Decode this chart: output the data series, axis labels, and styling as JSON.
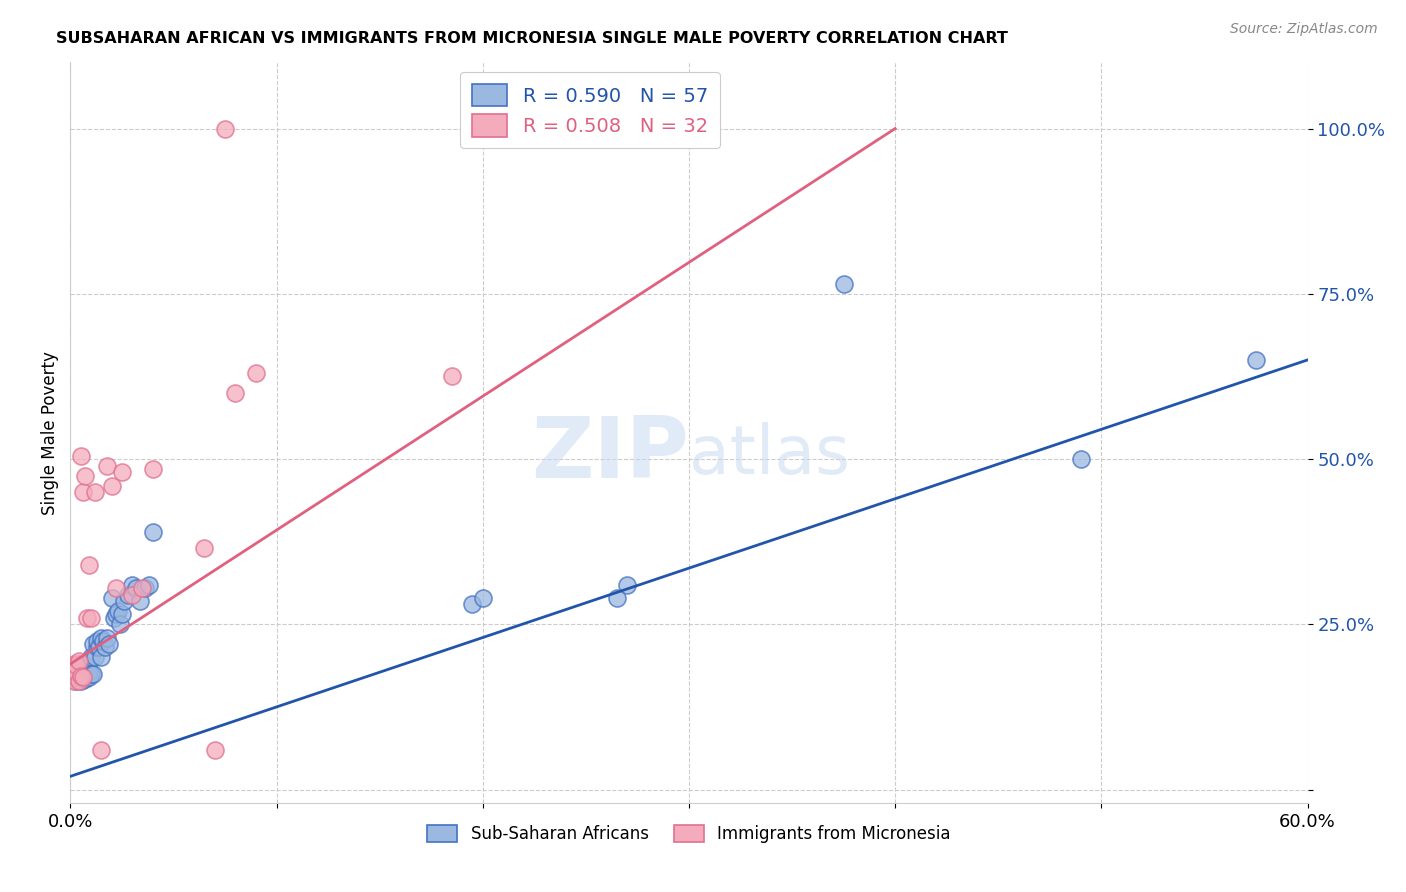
{
  "title": "SUBSAHARAN AFRICAN VS IMMIGRANTS FROM MICRONESIA SINGLE MALE POVERTY CORRELATION CHART",
  "source": "Source: ZipAtlas.com",
  "ylabel": "Single Male Poverty",
  "legend_sub1": "Sub-Saharan Africans",
  "legend_sub2": "Immigrants from Micronesia",
  "blue_fill": "#9AB8E0",
  "blue_edge": "#4472C4",
  "pink_fill": "#F4ACBC",
  "pink_edge": "#E07090",
  "blue_line_color": "#2255AA",
  "pink_line_color": "#E06080",
  "watermark_color": "#C5D8F0",
  "blue_line_x0": 0.0,
  "blue_line_y0": 0.02,
  "blue_line_x1": 0.6,
  "blue_line_y1": 0.65,
  "pink_line_x0": 0.0,
  "pink_line_y0": 0.19,
  "pink_line_x1": 0.4,
  "pink_line_y1": 1.0,
  "blue_scatter_x": [
    0.001,
    0.002,
    0.002,
    0.003,
    0.003,
    0.003,
    0.004,
    0.004,
    0.004,
    0.005,
    0.005,
    0.005,
    0.006,
    0.006,
    0.006,
    0.007,
    0.007,
    0.007,
    0.008,
    0.008,
    0.009,
    0.009,
    0.01,
    0.01,
    0.011,
    0.011,
    0.012,
    0.013,
    0.013,
    0.014,
    0.015,
    0.015,
    0.016,
    0.017,
    0.018,
    0.019,
    0.02,
    0.021,
    0.022,
    0.023,
    0.024,
    0.025,
    0.026,
    0.028,
    0.03,
    0.032,
    0.034,
    0.036,
    0.038,
    0.04,
    0.195,
    0.2,
    0.265,
    0.27,
    0.375,
    0.49,
    0.575
  ],
  "blue_scatter_y": [
    0.175,
    0.18,
    0.185,
    0.165,
    0.175,
    0.185,
    0.17,
    0.18,
    0.19,
    0.165,
    0.175,
    0.185,
    0.17,
    0.175,
    0.185,
    0.168,
    0.178,
    0.188,
    0.172,
    0.182,
    0.17,
    0.18,
    0.175,
    0.2,
    0.175,
    0.22,
    0.2,
    0.215,
    0.225,
    0.215,
    0.2,
    0.23,
    0.225,
    0.215,
    0.23,
    0.22,
    0.29,
    0.26,
    0.265,
    0.27,
    0.25,
    0.265,
    0.285,
    0.295,
    0.31,
    0.305,
    0.285,
    0.305,
    0.31,
    0.39,
    0.28,
    0.29,
    0.29,
    0.31,
    0.765,
    0.5,
    0.65
  ],
  "pink_scatter_x": [
    0.001,
    0.001,
    0.002,
    0.002,
    0.003,
    0.003,
    0.003,
    0.004,
    0.004,
    0.005,
    0.005,
    0.006,
    0.006,
    0.007,
    0.008,
    0.009,
    0.01,
    0.012,
    0.015,
    0.018,
    0.02,
    0.022,
    0.025,
    0.03,
    0.035,
    0.04,
    0.065,
    0.07,
    0.075,
    0.08,
    0.09,
    0.185
  ],
  "pink_scatter_y": [
    0.175,
    0.185,
    0.165,
    0.19,
    0.17,
    0.178,
    0.188,
    0.164,
    0.195,
    0.172,
    0.505,
    0.45,
    0.17,
    0.475,
    0.26,
    0.34,
    0.26,
    0.45,
    0.06,
    0.49,
    0.46,
    0.305,
    0.48,
    0.295,
    0.305,
    0.485,
    0.365,
    0.06,
    1.0,
    0.6,
    0.63,
    0.625
  ],
  "xlim": [
    0.0,
    0.6
  ],
  "ylim": [
    -0.02,
    1.1
  ]
}
